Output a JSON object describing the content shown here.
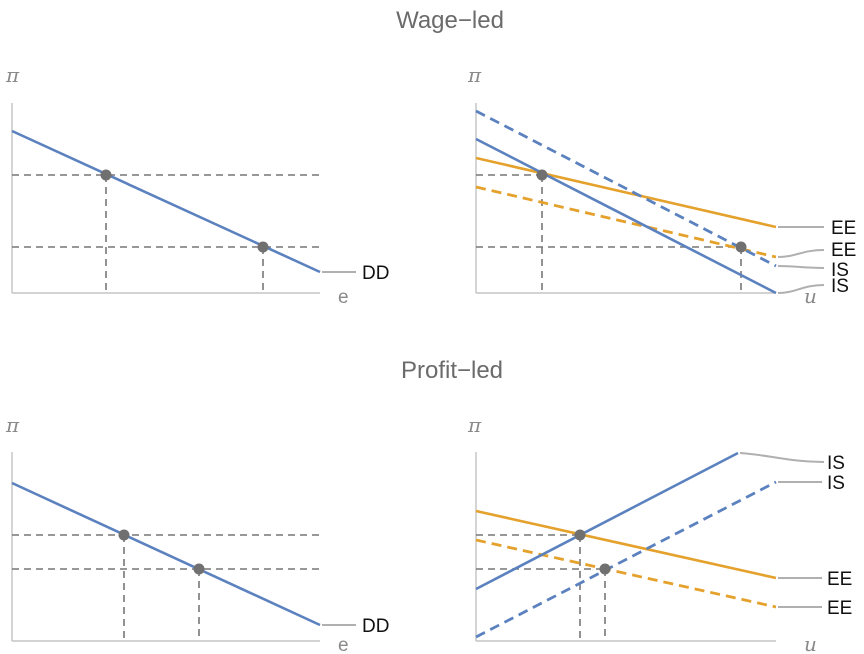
{
  "titles": {
    "wage_led": "Wage−led",
    "profit_led": "Profit−led"
  },
  "axes": {
    "pi": "π",
    "e": "e",
    "u": "u"
  },
  "curve_labels": {
    "dd": "DD",
    "ee": "EE",
    "is": "IS"
  },
  "colors": {
    "blue": "#5b82bf",
    "orange": "#e4a12c",
    "guide": "#777777",
    "axis": "#b9b9b9"
  },
  "panels": [
    {
      "id": "wage-led-dd",
      "curves": [
        "DD"
      ],
      "equilibria": 2
    },
    {
      "id": "wage-led-is-ee",
      "curves": [
        "EE",
        "EE",
        "IS",
        "IS"
      ],
      "equilibria": 2
    },
    {
      "id": "profit-led-dd",
      "curves": [
        "DD"
      ],
      "equilibria": 2
    },
    {
      "id": "profit-led-is-ee",
      "curves": [
        "IS",
        "IS",
        "EE",
        "EE"
      ],
      "equilibria": 2
    }
  ]
}
